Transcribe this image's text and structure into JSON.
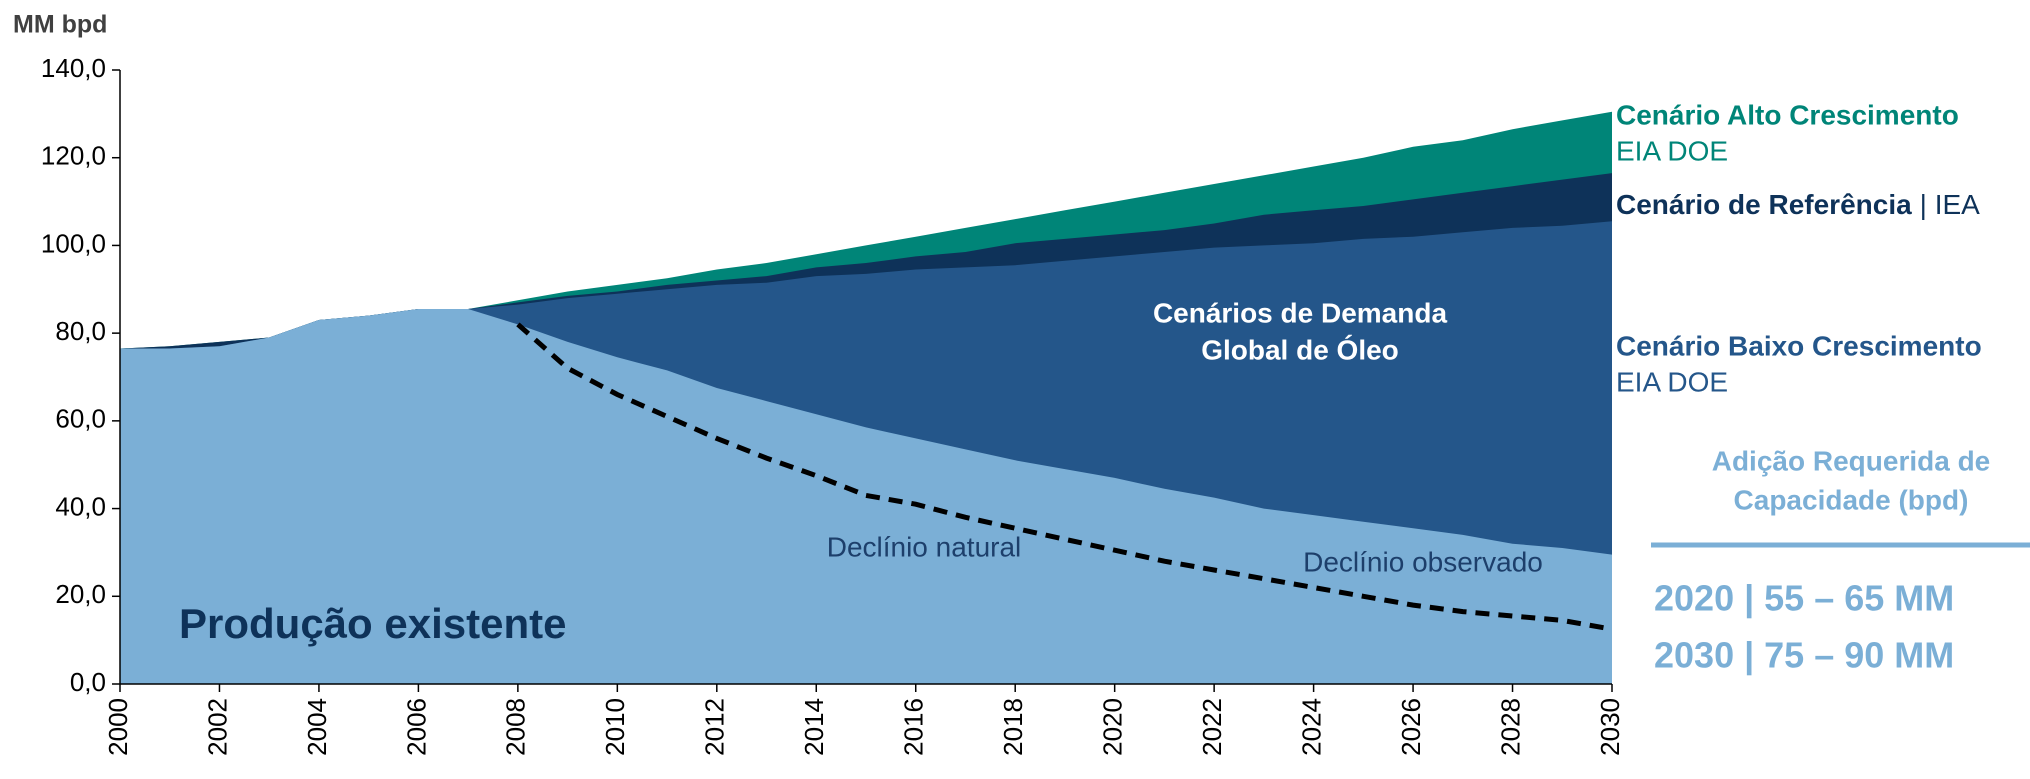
{
  "chart_data": {
    "type": "area",
    "y_label": "MM bpd",
    "x": [
      2000,
      2001,
      2002,
      2003,
      2004,
      2005,
      2006,
      2007,
      2008,
      2009,
      2010,
      2011,
      2012,
      2013,
      2014,
      2015,
      2016,
      2017,
      2018,
      2019,
      2020,
      2021,
      2022,
      2023,
      2024,
      2025,
      2026,
      2027,
      2028,
      2029,
      2030
    ],
    "series": [
      {
        "name": "Cenário Alto Crescimento",
        "color": "#008578",
        "values": [
          76.5,
          77,
          78,
          79,
          83,
          84,
          85.5,
          85.5,
          87.5,
          89.5,
          91,
          92.5,
          94.5,
          96,
          98,
          100,
          102,
          104,
          106,
          108,
          110,
          112,
          114,
          116,
          118,
          120,
          122.5,
          124,
          126.5,
          128.5,
          130.5
        ]
      },
      {
        "name": "Cenário de Referência",
        "color": "#0e3259",
        "values": [
          76.5,
          77,
          78,
          79,
          83,
          84,
          85.5,
          85.5,
          87,
          88.5,
          89.5,
          91,
          92,
          93,
          95,
          96,
          97.5,
          98.5,
          100.5,
          101.5,
          102.5,
          103.5,
          105,
          107,
          108,
          109,
          110.5,
          112,
          113.5,
          115,
          116.5
        ]
      },
      {
        "name": "Cenário Baixo Crescimento",
        "color": "#24568a",
        "values": [
          76.5,
          76.5,
          77,
          79,
          83,
          84,
          85.5,
          85.5,
          86.5,
          88,
          89,
          90,
          91,
          91.5,
          93,
          93.5,
          94.5,
          95,
          95.5,
          96.5,
          97.5,
          98.5,
          99.5,
          100,
          100.5,
          101.5,
          102,
          103,
          104,
          104.5,
          105.5
        ]
      },
      {
        "name": "Produção existente",
        "color": "#7bafd6",
        "values": [
          76.5,
          76.5,
          77,
          79,
          83,
          84,
          85.5,
          85.5,
          82,
          78,
          74.5,
          71.5,
          67.5,
          64.5,
          61.5,
          58.5,
          56,
          53.5,
          51,
          49,
          47,
          44.5,
          42.5,
          40,
          38.5,
          37,
          35.5,
          34,
          32,
          31,
          29.5
        ]
      },
      {
        "name": "Declínio natural",
        "color": "#000000",
        "dashed": true,
        "values": [
          null,
          null,
          null,
          null,
          null,
          null,
          null,
          null,
          82,
          72,
          66,
          61,
          56,
          51.5,
          47.5,
          43,
          41,
          38,
          35.5,
          33,
          30.5,
          28,
          26,
          24,
          22,
          20,
          18,
          16.5,
          15.5,
          14.5,
          12.5
        ]
      }
    ],
    "xlim": [
      2000,
      2030
    ],
    "xticks": [
      2000,
      2002,
      2004,
      2006,
      2008,
      2010,
      2012,
      2014,
      2016,
      2018,
      2020,
      2022,
      2024,
      2026,
      2028,
      2030
    ],
    "ylim": [
      0,
      140
    ],
    "yticks": [
      {
        "value": 0,
        "label": "0,0"
      },
      {
        "value": 20,
        "label": "20,0"
      },
      {
        "value": 40,
        "label": "40,0"
      },
      {
        "value": 60,
        "label": "60,0"
      },
      {
        "value": 80,
        "label": "80,0"
      },
      {
        "value": 100,
        "label": "100,0"
      },
      {
        "value": 120,
        "label": "120,0"
      },
      {
        "value": 140,
        "label": "140,0"
      }
    ],
    "annotations": [
      "EIA DOE",
      "| IEA",
      "EIA DOE",
      "Cenários de Demanda",
      "Global de Óleo",
      "Declínio observado",
      "Adição Requerida de",
      "Capacidade (bpd)",
      "2020 | 55 – 65 MM",
      "2030 | 75 – 90 MM"
    ]
  }
}
